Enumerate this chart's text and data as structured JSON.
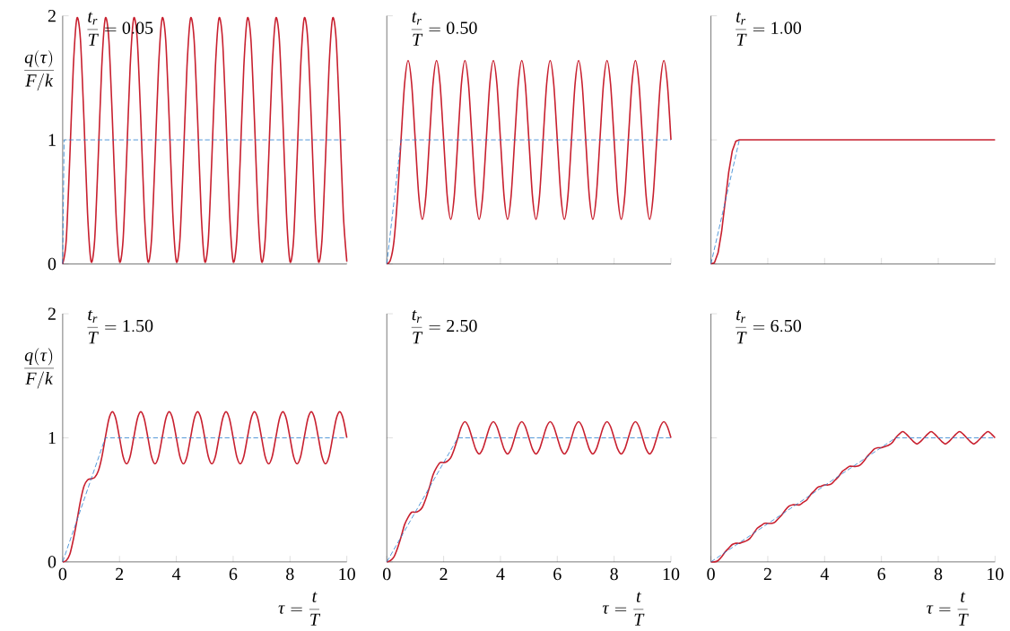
{
  "chart_data": [
    {
      "type": "line",
      "ylabel": "\\frac{q(\\tau)}{F/k}",
      "annotations": [
        "\\frac{t_r}{T}=0.05"
      ],
      "xlim": [
        0,
        10
      ],
      "ylim": [
        0,
        2
      ],
      "xticks": [
        0,
        2,
        4,
        6,
        8,
        10
      ],
      "yticks": [
        0,
        1,
        2
      ],
      "tick_labels": "y",
      "x": [
        0,
        0.125,
        0.25,
        0.375,
        0.5,
        0.625,
        0.75,
        0.875,
        1,
        1.125,
        1.25,
        1.375,
        1.5,
        1.625,
        1.75,
        1.875,
        2,
        2.125,
        2.25,
        2.375,
        2.5,
        2.625,
        2.75,
        2.875,
        3,
        3.125,
        3.25,
        3.375,
        3.5,
        3.625,
        3.75,
        3.875,
        4,
        4.125,
        4.25,
        4.375,
        4.5,
        4.625,
        4.75,
        4.875,
        5,
        5.125,
        5.25,
        5.375,
        5.5,
        5.625,
        5.75,
        5.875,
        6,
        6.125,
        6.25,
        6.375,
        6.5,
        6.625,
        6.75,
        6.875,
        7,
        7.125,
        7.25,
        7.375,
        7.5,
        7.625,
        7.75,
        7.875,
        8,
        8.125,
        8.25,
        8.375,
        8.5,
        8.625,
        8.75,
        8.875,
        9,
        9.125,
        9.25,
        9.375,
        9.5,
        9.625,
        9.75,
        9.875,
        10
      ],
      "series": [
        {
          "color": "#c8202f",
          "line_style": "solid",
          "values": [
            0,
            0.19,
            0.85,
            1.59,
            1.98,
            1.81,
            1.16,
            0.41,
            0.02,
            0.19,
            0.85,
            1.59,
            1.98,
            1.81,
            1.16,
            0.41,
            0.02,
            0.19,
            0.85,
            1.59,
            1.98,
            1.81,
            1.16,
            0.41,
            0.02,
            0.19,
            0.85,
            1.59,
            1.98,
            1.81,
            1.16,
            0.41,
            0.02,
            0.19,
            0.85,
            1.59,
            1.98,
            1.81,
            1.16,
            0.41,
            0.02,
            0.19,
            0.85,
            1.59,
            1.98,
            1.81,
            1.16,
            0.41,
            0.02,
            0.19,
            0.85,
            1.59,
            1.98,
            1.81,
            1.16,
            0.41,
            0.02,
            0.19,
            0.85,
            1.59,
            1.98,
            1.81,
            1.16,
            0.41,
            0.02,
            0.19,
            0.85,
            1.59,
            1.98,
            1.81,
            1.16,
            0.41,
            0.02,
            0.19,
            0.85,
            1.59,
            1.98,
            1.81,
            1.16,
            0.41,
            0.02
          ]
        },
        {
          "color": "#2a7fcf",
          "line_style": "dashed",
          "x": [
            0,
            0.05,
            10
          ],
          "values": [
            0,
            1,
            1
          ]
        }
      ]
    },
    {
      "type": "line",
      "annotations": [
        "\\frac{t_r}{T}=0.50"
      ],
      "xlim": [
        0,
        10
      ],
      "ylim": [
        0,
        2
      ],
      "xticks": [
        0,
        2,
        4,
        6,
        8,
        10
      ],
      "yticks": [
        0,
        1,
        2
      ],
      "tick_labels": false,
      "x": [
        0,
        0.125,
        0.25,
        0.375,
        0.5,
        0.625,
        0.75,
        0.875,
        1,
        1.125,
        1.25,
        1.375,
        1.5,
        1.625,
        1.75,
        1.875,
        2,
        2.125,
        2.25,
        2.375,
        2.5,
        2.625,
        2.75,
        2.875,
        3,
        3.125,
        3.25,
        3.375,
        3.5,
        3.625,
        3.75,
        3.875,
        4,
        4.125,
        4.25,
        4.375,
        4.5,
        4.625,
        4.75,
        4.875,
        5,
        5.125,
        5.25,
        5.375,
        5.5,
        5.625,
        5.75,
        5.875,
        6,
        6.125,
        6.25,
        6.375,
        6.5,
        6.625,
        6.75,
        6.875,
        7,
        7.125,
        7.25,
        7.375,
        7.5,
        7.625,
        7.75,
        7.875,
        8,
        8.125,
        8.25,
        8.375,
        8.5,
        8.625,
        8.75,
        8.875,
        9,
        9.125,
        9.25,
        9.375,
        9.5,
        9.625,
        9.75,
        9.875,
        10
      ],
      "series": [
        {
          "color": "#c8202f",
          "line_style": "solid",
          "values": [
            0,
            0.03,
            0.18,
            0.53,
            1,
            1.45,
            1.64,
            1.45,
            1,
            0.55,
            0.36,
            0.55,
            1,
            1.45,
            1.64,
            1.45,
            1,
            0.55,
            0.36,
            0.55,
            1,
            1.45,
            1.64,
            1.45,
            1,
            0.55,
            0.36,
            0.55,
            1,
            1.45,
            1.64,
            1.45,
            1,
            0.55,
            0.36,
            0.55,
            1,
            1.45,
            1.64,
            1.45,
            1,
            0.55,
            0.36,
            0.55,
            1,
            1.45,
            1.64,
            1.45,
            1,
            0.55,
            0.36,
            0.55,
            1,
            1.45,
            1.64,
            1.45,
            1,
            0.55,
            0.36,
            0.55,
            1,
            1.45,
            1.64,
            1.45,
            1,
            0.55,
            0.36,
            0.55,
            1,
            1.45,
            1.64,
            1.45,
            1,
            0.55,
            0.36,
            0.55,
            1,
            1.45,
            1.64,
            1.45,
            1
          ]
        },
        {
          "color": "#2a7fcf",
          "line_style": "dashed",
          "x": [
            0,
            0.5,
            10
          ],
          "values": [
            0,
            1,
            1
          ]
        }
      ]
    },
    {
      "type": "line",
      "annotations": [
        "\\frac{t_r}{T}=1.00"
      ],
      "xlim": [
        0,
        10
      ],
      "ylim": [
        0,
        2
      ],
      "xticks": [
        0,
        2,
        4,
        6,
        8,
        10
      ],
      "yticks": [
        0,
        1,
        2
      ],
      "tick_labels": false,
      "x": [
        0,
        0.125,
        0.25,
        0.375,
        0.5,
        0.625,
        0.75,
        0.875,
        1,
        10
      ],
      "series": [
        {
          "color": "#c8202f",
          "line_style": "solid",
          "values": [
            0,
            0.01,
            0.09,
            0.26,
            0.5,
            0.74,
            0.91,
            0.99,
            1,
            1
          ]
        },
        {
          "color": "#2a7fcf",
          "line_style": "dashed",
          "x": [
            0,
            1
          ],
          "values": [
            0,
            1
          ]
        }
      ]
    },
    {
      "type": "line",
      "ylabel": "\\frac{q(\\tau)}{F/k}",
      "xlabel": "\\tau=\\frac{t}{T}",
      "annotations": [
        "\\frac{t_r}{T}=1.50"
      ],
      "xlim": [
        0,
        10
      ],
      "ylim": [
        0,
        2
      ],
      "xticks": [
        0,
        2,
        4,
        6,
        8,
        10
      ],
      "yticks": [
        0,
        1,
        2
      ],
      "x": [
        0,
        0.125,
        0.25,
        0.375,
        0.5,
        0.625,
        0.75,
        0.875,
        1,
        1.125,
        1.25,
        1.375,
        1.5,
        1.625,
        1.75,
        1.875,
        2,
        2.125,
        2.25,
        2.375,
        2.5,
        2.625,
        2.75,
        2.875,
        3,
        3.125,
        3.25,
        3.375,
        3.5,
        3.625,
        3.75,
        3.875,
        4,
        4.125,
        4.25,
        4.375,
        4.5,
        4.625,
        4.75,
        4.875,
        5,
        5.125,
        5.25,
        5.375,
        5.5,
        5.625,
        5.75,
        5.875,
        6,
        6.125,
        6.25,
        6.375,
        6.5,
        6.625,
        6.75,
        6.875,
        7,
        7.125,
        7.25,
        7.375,
        7.5,
        7.625,
        7.75,
        7.875,
        8,
        8.125,
        8.25,
        8.375,
        8.5,
        8.625,
        8.75,
        8.875,
        9,
        9.125,
        9.25,
        9.375,
        9.5,
        9.625,
        9.75,
        9.875,
        10
      ],
      "series": [
        {
          "color": "#c8202f",
          "line_style": "solid",
          "values": [
            0,
            0.01,
            0.06,
            0.18,
            0.33,
            0.49,
            0.61,
            0.66,
            0.67,
            0.68,
            0.73,
            0.84,
            1,
            1.15,
            1.21,
            1.15,
            1,
            0.85,
            0.79,
            0.85,
            1,
            1.15,
            1.21,
            1.15,
            1,
            0.85,
            0.79,
            0.85,
            1,
            1.15,
            1.21,
            1.15,
            1,
            0.85,
            0.79,
            0.85,
            1,
            1.15,
            1.21,
            1.15,
            1,
            0.85,
            0.79,
            0.85,
            1,
            1.15,
            1.21,
            1.15,
            1,
            0.85,
            0.79,
            0.85,
            1,
            1.15,
            1.21,
            1.15,
            1,
            0.85,
            0.79,
            0.85,
            1,
            1.15,
            1.21,
            1.15,
            1,
            0.85,
            0.79,
            0.85,
            1,
            1.15,
            1.21,
            1.15,
            1,
            0.85,
            0.79,
            0.85,
            1,
            1.15,
            1.21,
            1.15,
            1
          ]
        },
        {
          "color": "#2a7fcf",
          "line_style": "dashed",
          "x": [
            0,
            1.5,
            10
          ],
          "values": [
            0,
            1,
            1
          ]
        }
      ]
    },
    {
      "type": "line",
      "xlabel": "\\tau=\\frac{t}{T}",
      "annotations": [
        "\\frac{t_r}{T}=2.50"
      ],
      "xlim": [
        0,
        10
      ],
      "ylim": [
        0,
        2
      ],
      "xticks": [
        0,
        2,
        4,
        6,
        8,
        10
      ],
      "yticks": [
        0,
        1,
        2
      ],
      "tick_labels": "x",
      "x": [
        0,
        0.125,
        0.25,
        0.375,
        0.5,
        0.625,
        0.75,
        0.875,
        1,
        1.125,
        1.25,
        1.375,
        1.5,
        1.625,
        1.75,
        1.875,
        2,
        2.125,
        2.25,
        2.375,
        2.5,
        2.625,
        2.75,
        2.875,
        3,
        3.125,
        3.25,
        3.375,
        3.5,
        3.625,
        3.75,
        3.875,
        4,
        4.125,
        4.25,
        4.375,
        4.5,
        4.625,
        4.75,
        4.875,
        5,
        5.125,
        5.25,
        5.375,
        5.5,
        5.625,
        5.75,
        5.875,
        6,
        6.125,
        6.25,
        6.375,
        6.5,
        6.625,
        6.75,
        6.875,
        7,
        7.125,
        7.25,
        7.375,
        7.5,
        7.625,
        7.75,
        7.875,
        8,
        8.125,
        8.25,
        8.375,
        8.5,
        8.625,
        8.75,
        8.875,
        9,
        9.125,
        9.25,
        9.375,
        9.5,
        9.625,
        9.75,
        9.875,
        10
      ],
      "series": [
        {
          "color": "#c8202f",
          "line_style": "solid",
          "values": [
            0,
            0.01,
            0.04,
            0.11,
            0.2,
            0.3,
            0.36,
            0.4,
            0.4,
            0.41,
            0.44,
            0.51,
            0.6,
            0.7,
            0.76,
            0.8,
            0.8,
            0.81,
            0.84,
            0.91,
            1,
            1.09,
            1.13,
            1.09,
            1,
            0.91,
            0.87,
            0.91,
            1,
            1.09,
            1.13,
            1.09,
            1,
            0.91,
            0.87,
            0.91,
            1,
            1.09,
            1.13,
            1.09,
            1,
            0.91,
            0.87,
            0.91,
            1,
            1.09,
            1.13,
            1.09,
            1,
            0.91,
            0.87,
            0.91,
            1,
            1.09,
            1.13,
            1.09,
            1,
            0.91,
            0.87,
            0.91,
            1,
            1.09,
            1.13,
            1.09,
            1,
            0.91,
            0.87,
            0.91,
            1,
            1.09,
            1.13,
            1.09,
            1,
            0.91,
            0.87,
            0.91,
            1,
            1.09,
            1.13,
            1.09,
            1
          ]
        },
        {
          "color": "#2a7fcf",
          "line_style": "dashed",
          "x": [
            0,
            2.5,
            10
          ],
          "values": [
            0,
            1,
            1
          ]
        }
      ]
    },
    {
      "type": "line",
      "xlabel": "\\tau=\\frac{t}{T}",
      "annotations": [
        "\\frac{t_r}{T}=6.50"
      ],
      "xlim": [
        0,
        10
      ],
      "ylim": [
        0,
        2
      ],
      "xticks": [
        0,
        2,
        4,
        6,
        8,
        10
      ],
      "yticks": [
        0,
        1,
        2
      ],
      "tick_labels": "x",
      "x": [
        0,
        0.125,
        0.25,
        0.375,
        0.5,
        0.625,
        0.75,
        0.875,
        1,
        1.125,
        1.25,
        1.375,
        1.5,
        1.625,
        1.75,
        1.875,
        2,
        2.125,
        2.25,
        2.375,
        2.5,
        2.625,
        2.75,
        2.875,
        3,
        3.125,
        3.25,
        3.375,
        3.5,
        3.625,
        3.75,
        3.875,
        4,
        4.125,
        4.25,
        4.375,
        4.5,
        4.625,
        4.75,
        4.875,
        5,
        5.125,
        5.25,
        5.375,
        5.5,
        5.625,
        5.75,
        5.875,
        6,
        6.125,
        6.25,
        6.375,
        6.5,
        6.625,
        6.75,
        6.875,
        7,
        7.125,
        7.25,
        7.375,
        7.5,
        7.625,
        7.75,
        7.875,
        8,
        8.125,
        8.25,
        8.375,
        8.5,
        8.625,
        8.75,
        8.875,
        9,
        9.125,
        9.25,
        9.375,
        9.5,
        9.625,
        9.75,
        9.875,
        10
      ],
      "series": [
        {
          "color": "#c8202f",
          "line_style": "solid",
          "values": [
            0,
            0,
            0.01,
            0.04,
            0.08,
            0.11,
            0.14,
            0.15,
            0.15,
            0.16,
            0.17,
            0.19,
            0.23,
            0.27,
            0.29,
            0.31,
            0.31,
            0.31,
            0.32,
            0.35,
            0.38,
            0.42,
            0.45,
            0.46,
            0.46,
            0.46,
            0.48,
            0.5,
            0.54,
            0.57,
            0.6,
            0.61,
            0.62,
            0.62,
            0.63,
            0.66,
            0.69,
            0.73,
            0.75,
            0.77,
            0.77,
            0.77,
            0.78,
            0.81,
            0.85,
            0.88,
            0.91,
            0.92,
            0.92,
            0.93,
            0.94,
            0.96,
            1,
            1.03,
            1.05,
            1.03,
            1,
            0.97,
            0.95,
            0.97,
            1,
            1.03,
            1.05,
            1.03,
            1,
            0.97,
            0.95,
            0.97,
            1,
            1.03,
            1.05,
            1.03,
            1,
            0.97,
            0.95,
            0.97,
            1,
            1.03,
            1.05,
            1.03,
            1
          ]
        },
        {
          "color": "#2a7fcf",
          "line_style": "dashed",
          "x": [
            0,
            6.5,
            10
          ],
          "values": [
            0,
            1,
            1
          ]
        }
      ]
    }
  ]
}
